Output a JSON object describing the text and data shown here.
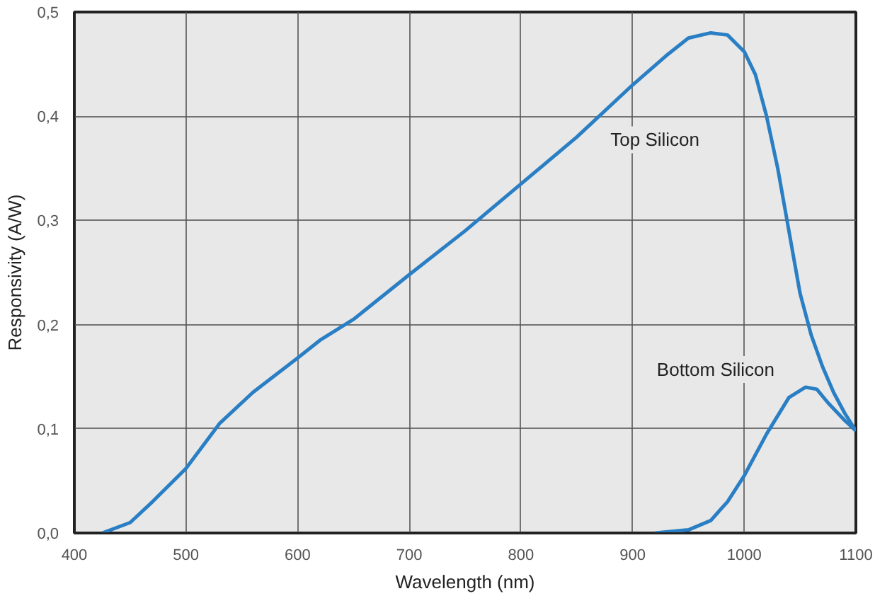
{
  "chart_data": {
    "type": "line",
    "xlabel": "Wavelength (nm)",
    "ylabel": "Responsivity (A/W)",
    "xlim": [
      400,
      1100
    ],
    "xticks": [
      400,
      500,
      600,
      700,
      800,
      900,
      1000,
      1100
    ],
    "ylim": [
      0,
      0.5
    ],
    "yticks": [
      {
        "value": 0,
        "label": "0,0"
      },
      {
        "value": 0.1,
        "label": "0,1"
      },
      {
        "value": 0.2,
        "label": "0,2"
      },
      {
        "value": 0.3,
        "label": "0,3"
      },
      {
        "value": 0.4,
        "label": "0,4"
      },
      {
        "value": 0.5,
        "label": "0,5"
      }
    ],
    "grid": true,
    "series": [
      {
        "name": "Top Silicon",
        "color": "#2a7fc4",
        "x": [
          425,
          450,
          470,
          500,
          530,
          560,
          600,
          620,
          650,
          700,
          750,
          800,
          850,
          900,
          930,
          950,
          970,
          985,
          1000,
          1010,
          1020,
          1030,
          1040,
          1050,
          1060,
          1070,
          1080,
          1090,
          1100
        ],
        "values": [
          0,
          0.01,
          0.03,
          0.062,
          0.105,
          0.135,
          0.168,
          0.185,
          0.205,
          0.248,
          0.29,
          0.335,
          0.38,
          0.43,
          0.458,
          0.475,
          0.48,
          0.478,
          0.462,
          0.44,
          0.4,
          0.35,
          0.29,
          0.23,
          0.19,
          0.16,
          0.135,
          0.115,
          0.098
        ]
      },
      {
        "name": "Bottom Silicon",
        "color": "#2a7fc4",
        "x": [
          920,
          950,
          970,
          985,
          1000,
          1020,
          1040,
          1055,
          1065,
          1075,
          1090,
          1100
        ],
        "values": [
          0,
          0.003,
          0.012,
          0.03,
          0.055,
          0.095,
          0.13,
          0.14,
          0.138,
          0.125,
          0.108,
          0.098
        ]
      }
    ]
  }
}
